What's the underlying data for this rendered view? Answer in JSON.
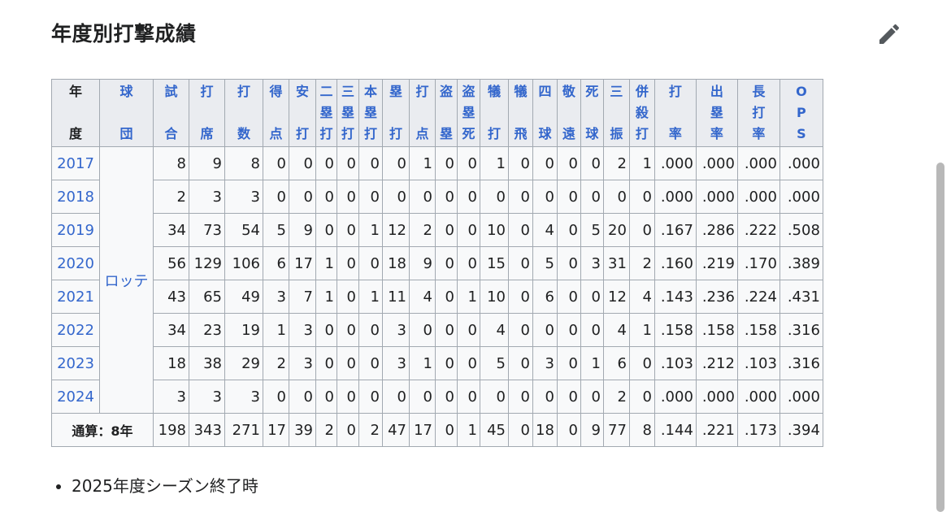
{
  "section_title": "年度別打撃成績",
  "edit_icon": "pencil-icon",
  "colors": {
    "link": "#3366cc",
    "header_bg": "#eaecf0",
    "border": "#a2a9b1"
  },
  "headers": [
    "年\n\n度",
    "球\n\n団",
    "試\n\n合",
    "打\n\n席",
    "打\n\n数",
    "得\n\n点",
    "安\n\n打",
    "二\n塁\n打",
    "三\n塁\n打",
    "本\n塁\n打",
    "塁\n\n打",
    "打\n\n点",
    "盗\n\n塁",
    "盗\n塁\n死",
    "犠\n\n打",
    "犠\n\n飛",
    "四\n\n球",
    "敬\n\n遠",
    "死\n\n球",
    "三\n\n振",
    "併\n殺\n打",
    "打\n\n率",
    "出\n塁\n率",
    "長\n打\n率",
    "O\nP\nS"
  ],
  "team": "ロッテ",
  "rows": [
    {
      "year": "2017",
      "values": [
        "8",
        "9",
        "8",
        "0",
        "0",
        "0",
        "0",
        "0",
        "0",
        "1",
        "0",
        "0",
        "1",
        "0",
        "0",
        "0",
        "0",
        "2",
        "1",
        ".000",
        ".000",
        ".000",
        ".000"
      ]
    },
    {
      "year": "2018",
      "values": [
        "2",
        "3",
        "3",
        "0",
        "0",
        "0",
        "0",
        "0",
        "0",
        "0",
        "0",
        "0",
        "0",
        "0",
        "0",
        "0",
        "0",
        "0",
        "0",
        ".000",
        ".000",
        ".000",
        ".000"
      ]
    },
    {
      "year": "2019",
      "values": [
        "34",
        "73",
        "54",
        "5",
        "9",
        "0",
        "0",
        "1",
        "12",
        "2",
        "0",
        "0",
        "10",
        "0",
        "4",
        "0",
        "5",
        "20",
        "0",
        ".167",
        ".286",
        ".222",
        ".508"
      ]
    },
    {
      "year": "2020",
      "values": [
        "56",
        "129",
        "106",
        "6",
        "17",
        "1",
        "0",
        "0",
        "18",
        "9",
        "0",
        "0",
        "15",
        "0",
        "5",
        "0",
        "3",
        "31",
        "2",
        ".160",
        ".219",
        ".170",
        ".389"
      ]
    },
    {
      "year": "2021",
      "values": [
        "43",
        "65",
        "49",
        "3",
        "7",
        "1",
        "0",
        "1",
        "11",
        "4",
        "0",
        "1",
        "10",
        "0",
        "6",
        "0",
        "0",
        "12",
        "4",
        ".143",
        ".236",
        ".224",
        ".431"
      ]
    },
    {
      "year": "2022",
      "values": [
        "34",
        "23",
        "19",
        "1",
        "3",
        "0",
        "0",
        "0",
        "3",
        "0",
        "0",
        "0",
        "4",
        "0",
        "0",
        "0",
        "0",
        "4",
        "1",
        ".158",
        ".158",
        ".158",
        ".316"
      ]
    },
    {
      "year": "2023",
      "values": [
        "18",
        "38",
        "29",
        "2",
        "3",
        "0",
        "0",
        "0",
        "3",
        "1",
        "0",
        "0",
        "5",
        "0",
        "3",
        "0",
        "1",
        "6",
        "0",
        ".103",
        ".212",
        ".103",
        ".316"
      ]
    },
    {
      "year": "2024",
      "values": [
        "3",
        "3",
        "3",
        "0",
        "0",
        "0",
        "0",
        "0",
        "0",
        "0",
        "0",
        "0",
        "0",
        "0",
        "0",
        "0",
        "0",
        "2",
        "0",
        ".000",
        ".000",
        ".000",
        ".000"
      ]
    }
  ],
  "total": {
    "label": "通算：8年",
    "values": [
      "198",
      "343",
      "271",
      "17",
      "39",
      "2",
      "0",
      "2",
      "47",
      "17",
      "0",
      "1",
      "45",
      "0",
      "18",
      "0",
      "9",
      "77",
      "8",
      ".144",
      ".221",
      ".173",
      ".394"
    ]
  },
  "notes": [
    "2025年度シーズン終了時"
  ]
}
